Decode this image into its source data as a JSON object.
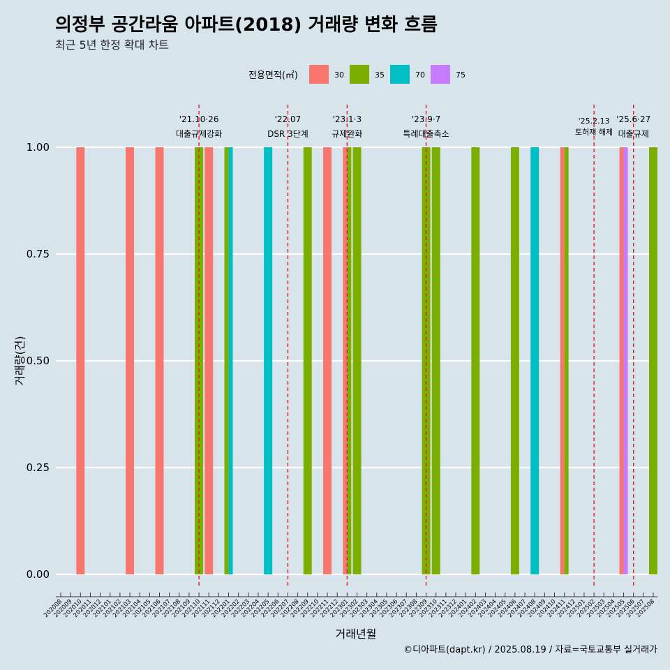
{
  "title": "의정부 공간라움 아파트(2018) 거래량 변화 흐름",
  "subtitle": "최근 5년 한정 확대 차트",
  "caption": "©디아파트(dapt.kr) / 2025.08.19 / 자료=국토교통부 실거래가",
  "colors": {
    "background": "#d8e4ec",
    "grid": "#ffffff",
    "event_line": "#e41a1c",
    "30": "#f8766d",
    "35": "#7cae00",
    "70": "#00bfc4",
    "75": "#c77cff"
  },
  "chart_data": {
    "type": "bar",
    "xlabel": "거래년월",
    "ylabel": "거래량(건)",
    "ylim": [
      0,
      1
    ],
    "yticks": [
      "0.00",
      "0.25",
      "0.50",
      "0.75",
      "1.00"
    ],
    "grid": true,
    "legend": {
      "title": "전용면적(㎡)",
      "position": "top",
      "entries": [
        "30",
        "35",
        "70",
        "75"
      ]
    },
    "categories": [
      "202008",
      "202009",
      "202010",
      "202011",
      "202012",
      "202101",
      "202102",
      "202103",
      "202104",
      "202105",
      "202106",
      "202107",
      "202108",
      "202109",
      "202110",
      "202111",
      "202112",
      "202201",
      "202202",
      "202203",
      "202204",
      "202205",
      "202206",
      "202207",
      "202208",
      "202209",
      "202210",
      "202211",
      "202212",
      "202301",
      "202302",
      "202303",
      "202304",
      "202305",
      "202306",
      "202307",
      "202308",
      "202309",
      "202310",
      "202311",
      "202312",
      "202401",
      "202402",
      "202403",
      "202404",
      "202405",
      "202406",
      "202407",
      "202408",
      "202409",
      "202410",
      "202411",
      "202412",
      "202501",
      "202502",
      "202503",
      "202504",
      "202505",
      "202506",
      "202507",
      "202508"
    ],
    "series": [
      {
        "name": "30",
        "points": [
          {
            "x": "202010",
            "y": 1
          },
          {
            "x": "202103",
            "y": 1
          },
          {
            "x": "202106",
            "y": 1
          },
          {
            "x": "202111",
            "y": 1
          },
          {
            "x": "202211",
            "y": 1
          },
          {
            "x": "202301",
            "y": 1
          },
          {
            "x": "202411",
            "y": 1
          },
          {
            "x": "202505",
            "y": 1
          }
        ]
      },
      {
        "name": "35",
        "points": [
          {
            "x": "202110",
            "y": 1
          },
          {
            "x": "202201",
            "y": 1
          },
          {
            "x": "202209",
            "y": 1
          },
          {
            "x": "202301",
            "y": 1
          },
          {
            "x": "202302",
            "y": 1
          },
          {
            "x": "202309",
            "y": 1
          },
          {
            "x": "202310",
            "y": 1
          },
          {
            "x": "202402",
            "y": 1
          },
          {
            "x": "202406",
            "y": 1
          },
          {
            "x": "202411",
            "y": 1
          },
          {
            "x": "202508",
            "y": 1
          }
        ]
      },
      {
        "name": "70",
        "points": [
          {
            "x": "202201",
            "y": 1
          },
          {
            "x": "202205",
            "y": 1
          },
          {
            "x": "202408",
            "y": 1
          }
        ]
      },
      {
        "name": "75",
        "points": [
          {
            "x": "202505",
            "y": 1
          }
        ]
      }
    ],
    "events": [
      {
        "date": "202110",
        "date_label": "'21.10·26",
        "label": "대출규제강화"
      },
      {
        "date": "202207",
        "date_label": "'22.07",
        "label": "DSR 3단계"
      },
      {
        "date": "202301",
        "date_label": "'23.1·3",
        "label": "규제완화"
      },
      {
        "date": "202309",
        "date_label": "'23.9·7",
        "label": "특례대출축소"
      },
      {
        "date": "202502",
        "date_label": "'25.2.13",
        "label": "토허제 해제"
      },
      {
        "date": "202506",
        "date_label": "'25.6·27",
        "label": "대출규제"
      }
    ]
  }
}
